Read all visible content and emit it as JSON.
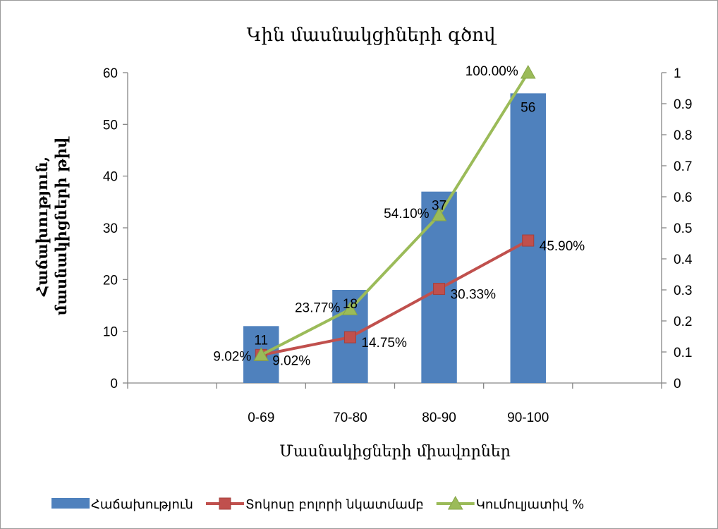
{
  "chart_data": {
    "type": "bar",
    "title": "Կին մասնակցիների գծով",
    "xlabel": "Մասնակիցների միավորներ",
    "ylabel_lines": [
      "Հաճախություն,",
      "մասնակիցների թիվ"
    ],
    "categories": [
      "0-69",
      "70-80",
      "80-90",
      "90-100"
    ],
    "x_slots": 6,
    "category_slot_start": 1,
    "ylim": [
      0,
      60
    ],
    "yticks": [
      "0",
      "10",
      "20",
      "30",
      "40",
      "50",
      "60"
    ],
    "y2lim": [
      0,
      1
    ],
    "y2ticks": [
      "0",
      "0.1",
      "0.2",
      "0.3",
      "0.4",
      "0.5",
      "0.6",
      "0.7",
      "0.8",
      "0.9",
      "1"
    ],
    "grid": false,
    "legend_position": "bottom",
    "series": [
      {
        "name": "Հաճախություն",
        "kind": "bar",
        "axis": "left",
        "color": "#4f81bd",
        "values": [
          11,
          18,
          37,
          56
        ],
        "labels": [
          "11",
          "18",
          "37",
          "56"
        ]
      },
      {
        "name": "Տոկոսը բոլորի նկատմամբ",
        "kind": "line",
        "axis": "right",
        "color": "#c0504d",
        "marker": "square",
        "values": [
          0.0902,
          0.1475,
          0.3033,
          0.459
        ],
        "labels": [
          "9.02%",
          "14.75%",
          "30.33%",
          "45.90%"
        ]
      },
      {
        "name": "Կումուլյատիվ %",
        "kind": "line",
        "axis": "right",
        "color": "#9bbb59",
        "marker": "triangle",
        "values": [
          0.0902,
          0.2377,
          0.541,
          1.0
        ],
        "labels": [
          "9.02%",
          "23.77%",
          "54.10%",
          "100.00%"
        ]
      }
    ]
  }
}
